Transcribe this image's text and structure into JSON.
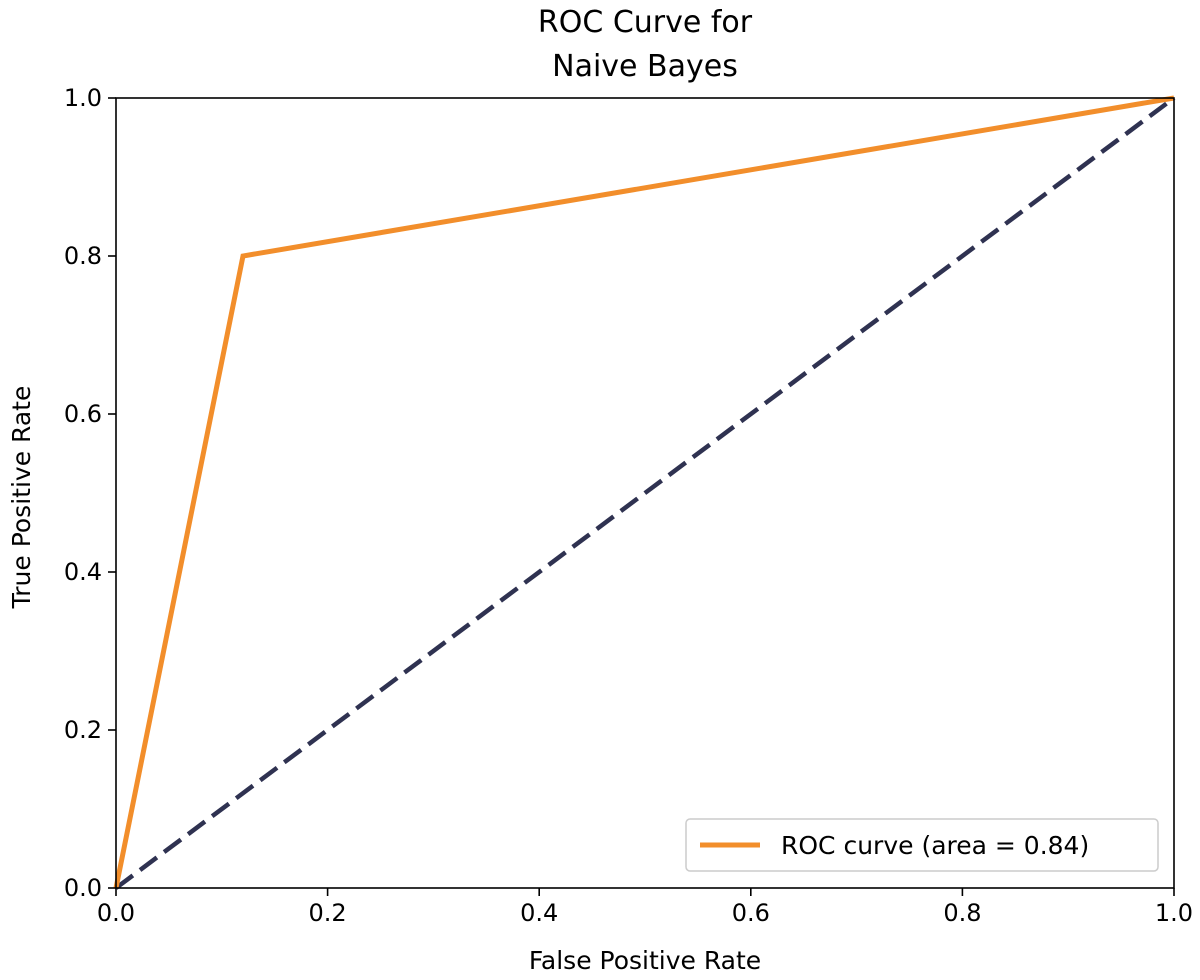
{
  "chart_data": {
    "type": "line",
    "title_lines": [
      "ROC Curve for",
      "Naive Bayes"
    ],
    "xlabel": "False Positive Rate",
    "ylabel": "True Positive Rate",
    "xlim": [
      0.0,
      1.0
    ],
    "ylim": [
      0.0,
      1.0
    ],
    "x_ticks": [
      "0.0",
      "0.2",
      "0.4",
      "0.6",
      "0.8",
      "1.0"
    ],
    "y_ticks": [
      "0.0",
      "0.2",
      "0.4",
      "0.6",
      "0.8",
      "1.0"
    ],
    "grid": false,
    "legend_position": "lower-right",
    "series": [
      {
        "name": "ROC curve (area = 0.84)",
        "color": "#f28e2b",
        "style": "solid",
        "x": [
          0.0,
          0.12,
          1.0
        ],
        "y": [
          0.0,
          0.8,
          1.0
        ]
      },
      {
        "color": "#2f3251",
        "style": "dashed",
        "x": [
          0.0,
          1.0
        ],
        "y": [
          0.0,
          1.0
        ]
      }
    ]
  }
}
